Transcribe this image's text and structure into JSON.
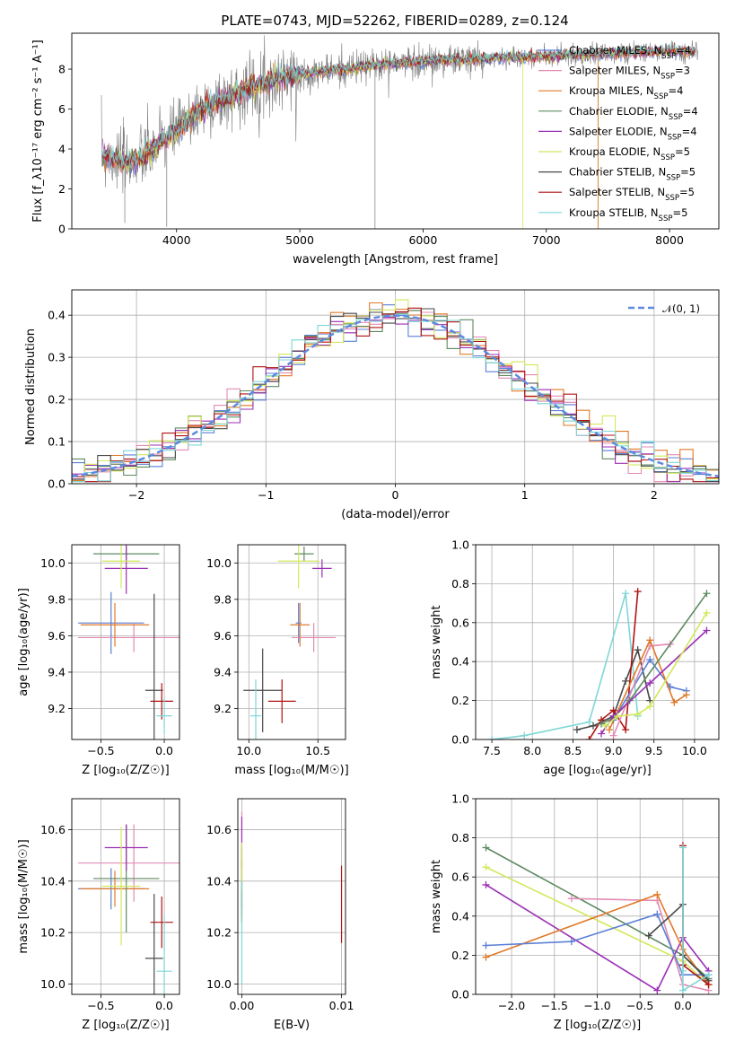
{
  "figure": {
    "title": "PLATE=0743, MJD=52262, FIBERID=0289, z=0.124"
  },
  "chart_data": [
    {
      "id": "spectrum",
      "type": "line",
      "xlabel": "wavelength [Angstrom, rest frame]",
      "ylabel": "Flux [f_λ10⁻¹⁷ erg cm⁻² s⁻¹ A⁻¹]",
      "xlim": [
        3150,
        8400
      ],
      "ylim": [
        0,
        9.8
      ],
      "xticks": [
        4000,
        5000,
        6000,
        7000,
        8000
      ],
      "yticks": [
        0,
        2,
        4,
        6,
        8
      ],
      "continuum": {
        "x": [
          3400,
          3500,
          3600,
          3700,
          3800,
          3900,
          4000,
          4100,
          4200,
          4300,
          4400,
          4500,
          4600,
          4700,
          4800,
          4900,
          5000,
          5200,
          5400,
          5600,
          5800,
          6000,
          6200,
          6400,
          6600,
          6800,
          7000,
          7200,
          7400,
          7600,
          7800,
          8000,
          8200
        ],
        "y": [
          3.7,
          3.5,
          3.3,
          3.5,
          3.9,
          4.5,
          4.9,
          5.4,
          6.0,
          6.3,
          6.5,
          6.8,
          7.1,
          7.3,
          7.5,
          7.6,
          7.7,
          7.9,
          8.0,
          8.2,
          8.3,
          8.4,
          8.45,
          8.5,
          8.55,
          8.6,
          8.65,
          8.7,
          8.75,
          8.8,
          8.85,
          8.9,
          8.9
        ]
      },
      "legend": [
        {
          "label": "Chabrier MILES, N_SSP=4",
          "color": "#5a7fd6"
        },
        {
          "label": "Salpeter MILES, N_SSP=3",
          "color": "#e38bb4"
        },
        {
          "label": "Kroupa MILES, N_SSP=4",
          "color": "#e07a29"
        },
        {
          "label": "Chabrier ELODIE, N_SSP=4",
          "color": "#5e8a62"
        },
        {
          "label": "Salpeter ELODIE, N_SSP=4",
          "color": "#9b2fb5"
        },
        {
          "label": "Kroupa ELODIE, N_SSP=5",
          "color": "#d2e85a"
        },
        {
          "label": "Chabrier STELIB, N_SSP=5",
          "color": "#4a4a4a"
        },
        {
          "label": "Salpeter STELIB, N_SSP=5",
          "color": "#b01313"
        },
        {
          "label": "Kroupa STELIB, N_SSP=5",
          "color": "#7fd6d6"
        }
      ]
    },
    {
      "id": "residuals",
      "type": "area",
      "xlabel": "(data-model)/error",
      "ylabel": "Normed distribution",
      "xlim": [
        -2.5,
        2.5
      ],
      "ylim": [
        0,
        0.46
      ],
      "xticks": [
        -2,
        -1,
        0,
        1,
        2
      ],
      "yticks": [
        0.0,
        0.1,
        0.2,
        0.3,
        0.4
      ],
      "legend_label": "𝒩(0, 1)",
      "gaussian_color": "#5b8ae0",
      "bin_width": 0.1
    },
    {
      "id": "age_vs_Z",
      "type": "scatter",
      "xlabel": "Z [log₁₀(Z/Z☉)]",
      "ylabel": "age  [log₁₀(age/yr)]",
      "xlim": [
        -0.73,
        0.12
      ],
      "ylim": [
        9.03,
        10.1
      ],
      "xticks": [
        -0.5,
        0.0
      ],
      "yticks": [
        9.2,
        9.4,
        9.6,
        9.8,
        10.0
      ],
      "points": [
        {
          "x": -0.42,
          "xerr": 0.26,
          "y": 9.67,
          "yerr": 0.17,
          "color": "#5a7fd6"
        },
        {
          "x": -0.24,
          "xerr": 0.44,
          "y": 9.59,
          "yerr": 0.08,
          "color": "#e38bb4"
        },
        {
          "x": -0.39,
          "xerr": 0.27,
          "y": 9.66,
          "yerr": 0.12,
          "color": "#e07a29"
        },
        {
          "x": -0.3,
          "xerr": 0.26,
          "y": 10.05,
          "yerr": 0.04,
          "color": "#5e8a62"
        },
        {
          "x": -0.3,
          "xerr": 0.17,
          "y": 9.97,
          "yerr": 0.14,
          "color": "#9b2fb5"
        },
        {
          "x": -0.34,
          "xerr": 0.15,
          "y": 10.01,
          "yerr": 0.15,
          "color": "#d2e85a"
        },
        {
          "x": -0.08,
          "xerr": 0.07,
          "y": 9.3,
          "yerr": 0.53,
          "color": "#4a4a4a"
        },
        {
          "x": -0.02,
          "xerr": 0.09,
          "y": 9.24,
          "yerr": 0.1,
          "color": "#b01313"
        },
        {
          "x": 0.0,
          "xerr": 0.06,
          "y": 9.16,
          "yerr": 0.1,
          "color": "#7fd6d6"
        }
      ]
    },
    {
      "id": "age_vs_mass",
      "type": "scatter",
      "xlabel": "mass [log₁₀(M/M☉)]",
      "ylabel": "",
      "xlim": [
        9.92,
        10.7
      ],
      "ylim": [
        9.03,
        10.1
      ],
      "xticks": [
        10.0,
        10.5
      ],
      "yticks": [
        9.2,
        9.4,
        9.6,
        9.8,
        10.0
      ],
      "points": [
        {
          "x": 10.36,
          "xerr": 0.02,
          "y": 9.67,
          "yerr": 0.11,
          "color": "#5a7fd6"
        },
        {
          "x": 10.47,
          "xerr": 0.16,
          "y": 9.59,
          "yerr": 0.08,
          "color": "#e38bb4"
        },
        {
          "x": 10.37,
          "xerr": 0.07,
          "y": 9.66,
          "yerr": 0.12,
          "color": "#e07a29"
        },
        {
          "x": 10.4,
          "xerr": 0.07,
          "y": 10.05,
          "yerr": 0.04,
          "color": "#5e8a62"
        },
        {
          "x": 10.53,
          "xerr": 0.07,
          "y": 9.97,
          "yerr": 0.05,
          "color": "#9b2fb5"
        },
        {
          "x": 10.36,
          "xerr": 0.15,
          "y": 10.01,
          "yerr": 0.15,
          "color": "#d2e85a"
        },
        {
          "x": 10.1,
          "xerr": 0.14,
          "y": 9.3,
          "yerr": 0.23,
          "color": "#4a4a4a"
        },
        {
          "x": 10.24,
          "xerr": 0.1,
          "y": 9.24,
          "yerr": 0.12,
          "color": "#b01313"
        },
        {
          "x": 10.05,
          "xerr": 0.04,
          "y": 9.16,
          "yerr": 0.2,
          "color": "#7fd6d6"
        }
      ]
    },
    {
      "id": "weight_vs_age",
      "type": "line",
      "xlabel": "age  [log₁₀(age/yr)]",
      "ylabel": "mass weight",
      "xlim": [
        7.3,
        10.3
      ],
      "ylim": [
        0,
        1.0
      ],
      "xticks": [
        7.5,
        8.0,
        8.5,
        9.0,
        9.5,
        10.0
      ],
      "yticks": [
        0.0,
        0.2,
        0.4,
        0.6,
        0.8,
        1.0
      ],
      "series": [
        {
          "color": "#7fd6d6",
          "x": [
            7.5,
            7.9,
            8.7,
            9.15,
            9.3
          ],
          "y": [
            0.0,
            0.02,
            0.09,
            0.75,
            0.12
          ]
        },
        {
          "color": "#4a4a4a",
          "x": [
            8.55,
            8.75,
            9.0,
            9.15,
            9.3,
            9.45
          ],
          "y": [
            0.05,
            0.07,
            0.12,
            0.3,
            0.46,
            0.2
          ]
        },
        {
          "color": "#b01313",
          "x": [
            8.7,
            8.85,
            9.0,
            9.15,
            9.3
          ],
          "y": [
            0.0,
            0.1,
            0.15,
            0.05,
            0.76
          ]
        },
        {
          "color": "#5a7fd6",
          "x": [
            9.0,
            9.45,
            9.7,
            9.9
          ],
          "y": [
            0.1,
            0.41,
            0.27,
            0.25
          ]
        },
        {
          "color": "#e38bb4",
          "x": [
            9.0,
            9.45,
            9.7
          ],
          "y": [
            0.02,
            0.48,
            0.49
          ]
        },
        {
          "color": "#e07a29",
          "x": [
            8.95,
            9.45,
            9.75,
            9.9
          ],
          "y": [
            0.05,
            0.51,
            0.19,
            0.23
          ]
        },
        {
          "color": "#5e8a62",
          "x": [
            8.85,
            9.0,
            9.2,
            10.15
          ],
          "y": [
            0.08,
            0.11,
            0.2,
            0.75
          ]
        },
        {
          "color": "#9b2fb5",
          "x": [
            8.85,
            9.0,
            9.45,
            10.15
          ],
          "y": [
            0.03,
            0.12,
            0.29,
            0.56
          ]
        },
        {
          "color": "#d2e85a",
          "x": [
            8.9,
            9.05,
            9.3,
            9.45,
            10.15
          ],
          "y": [
            0.07,
            0.12,
            0.13,
            0.17,
            0.65
          ]
        }
      ]
    },
    {
      "id": "mass_vs_Z",
      "type": "scatter",
      "xlabel": "Z [log₁₀(Z/Z☉)]",
      "ylabel": "mass [log₁₀(M/M☉)]",
      "xlim": [
        -0.73,
        0.12
      ],
      "ylim": [
        9.96,
        10.72
      ],
      "xticks": [
        -0.5,
        0.0
      ],
      "yticks": [
        10.0,
        10.2,
        10.4,
        10.6
      ],
      "points": [
        {
          "x": -0.42,
          "xerr": 0.26,
          "y": 10.37,
          "yerr": 0.08,
          "color": "#5a7fd6"
        },
        {
          "x": -0.24,
          "xerr": 0.44,
          "y": 10.47,
          "yerr": 0.15,
          "color": "#e38bb4"
        },
        {
          "x": -0.39,
          "xerr": 0.27,
          "y": 10.37,
          "yerr": 0.07,
          "color": "#e07a29"
        },
        {
          "x": -0.3,
          "xerr": 0.26,
          "y": 10.41,
          "yerr": 0.21,
          "color": "#5e8a62"
        },
        {
          "x": -0.3,
          "xerr": 0.17,
          "y": 10.53,
          "yerr": 0.09,
          "color": "#9b2fb5"
        },
        {
          "x": -0.34,
          "xerr": 0.15,
          "y": 10.38,
          "yerr": 0.23,
          "color": "#d2e85a"
        },
        {
          "x": -0.08,
          "xerr": 0.07,
          "y": 10.1,
          "yerr": 0.25,
          "color": "#4a4a4a"
        },
        {
          "x": -0.02,
          "xerr": 0.09,
          "y": 10.24,
          "yerr": 0.1,
          "color": "#b01313"
        },
        {
          "x": 0.0,
          "xerr": 0.06,
          "y": 10.05,
          "yerr": 0.22,
          "color": "#7fd6d6"
        }
      ]
    },
    {
      "id": "mass_vs_ebv",
      "type": "scatter",
      "xlabel": "E(B-V)",
      "ylabel": "",
      "xlim": [
        -0.0004,
        0.0104
      ],
      "ylim": [
        9.96,
        10.72
      ],
      "xticks": [
        0.0,
        0.01
      ],
      "xticklabels": [
        "0.00",
        "0.01"
      ],
      "yticks": [
        10.0,
        10.2,
        10.4,
        10.6
      ],
      "points": [
        {
          "x": 0.0,
          "y": 10.37,
          "yerr": 0.1,
          "color": "#5a7fd6"
        },
        {
          "x": 0.0,
          "y": 10.47,
          "yerr": 0.2,
          "color": "#e38bb4"
        },
        {
          "x": 0.0,
          "y": 10.37,
          "yerr": 0.12,
          "color": "#e07a29"
        },
        {
          "x": 0.0,
          "y": 10.41,
          "yerr": 0.12,
          "color": "#5e8a62"
        },
        {
          "x": 0.0,
          "y": 10.55,
          "yerr": 0.1,
          "color": "#9b2fb5"
        },
        {
          "x": 0.0,
          "y": 10.38,
          "yerr": 0.17,
          "color": "#d2e85a"
        },
        {
          "x": 0.0,
          "y": 10.3,
          "yerr": 0.06,
          "color": "#4a4a4a"
        },
        {
          "x": 0.01,
          "y": 10.31,
          "yerr": 0.15,
          "color": "#b01313"
        },
        {
          "x": 0.0,
          "y": 10.2,
          "yerr": 0.2,
          "color": "#7fd6d6"
        }
      ]
    },
    {
      "id": "weight_vs_Z",
      "type": "line",
      "xlabel": "Z [log₁₀(Z/Z☉)]",
      "ylabel": "mass weight",
      "xlim": [
        -2.42,
        0.42
      ],
      "ylim": [
        0,
        1.0
      ],
      "xticks": [
        -2.0,
        -1.5,
        -1.0,
        -0.5,
        0.0
      ],
      "yticks": [
        0.0,
        0.2,
        0.4,
        0.6,
        0.8,
        1.0
      ],
      "series": [
        {
          "color": "#5e8a62",
          "x": [
            -2.3,
            0.0,
            0.3
          ],
          "y": [
            0.75,
            0.2,
            0.08
          ]
        },
        {
          "color": "#d2e85a",
          "x": [
            -2.3,
            0.0,
            0.3
          ],
          "y": [
            0.65,
            0.17,
            0.05
          ]
        },
        {
          "color": "#9b2fb5",
          "x": [
            -2.3,
            -0.3,
            0.0,
            0.3
          ],
          "y": [
            0.56,
            0.02,
            0.29,
            0.12
          ]
        },
        {
          "color": "#e38bb4",
          "x": [
            -1.3,
            -0.3,
            0.0,
            0.3
          ],
          "y": [
            0.49,
            0.48,
            0.05,
            0.02
          ]
        },
        {
          "color": "#e07a29",
          "x": [
            -2.3,
            -0.3,
            0.0,
            0.3
          ],
          "y": [
            0.19,
            0.51,
            0.23,
            0.05
          ]
        },
        {
          "color": "#5a7fd6",
          "x": [
            -2.3,
            -1.3,
            -0.3,
            0.0,
            0.3
          ],
          "y": [
            0.25,
            0.27,
            0.41,
            0.1,
            0.1
          ]
        },
        {
          "color": "#4a4a4a",
          "x": [
            -0.4,
            0.0,
            0.0,
            0.3
          ],
          "y": [
            0.3,
            0.46,
            0.2,
            0.07
          ]
        },
        {
          "color": "#b01313",
          "x": [
            0.0,
            0.0,
            0.3
          ],
          "y": [
            0.76,
            0.15,
            0.05
          ]
        },
        {
          "color": "#7fd6d6",
          "x": [
            0.0,
            0.0,
            0.0,
            0.3
          ],
          "y": [
            0.75,
            0.12,
            0.02,
            0.1
          ]
        }
      ]
    }
  ]
}
